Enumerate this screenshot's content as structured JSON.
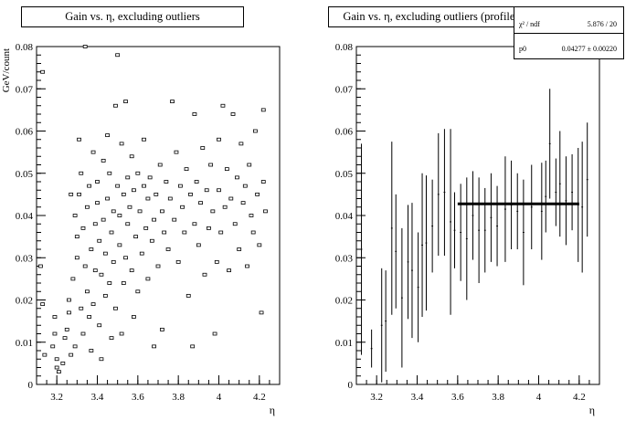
{
  "chart_data": [
    {
      "type": "scatter",
      "title": "Gain vs. η, excluding outliers",
      "xlabel": "η",
      "ylabel": "GeV/count",
      "xlim": [
        3.1,
        4.3
      ],
      "ylim": [
        0,
        0.08
      ],
      "x_ticks": [
        "3.2",
        "3.4",
        "3.6",
        "3.8",
        "4",
        "4.2"
      ],
      "y_ticks": [
        "0",
        "0.01",
        "0.02",
        "0.03",
        "0.04",
        "0.05",
        "0.06",
        "0.07",
        "0.08"
      ],
      "grid": false,
      "legend": "none",
      "marker": "open-box",
      "points": [
        [
          3.13,
          0.074
        ],
        [
          3.12,
          0.028
        ],
        [
          3.13,
          0.019
        ],
        [
          3.14,
          0.007
        ],
        [
          3.18,
          0.009
        ],
        [
          3.19,
          0.012
        ],
        [
          3.19,
          0.016
        ],
        [
          3.2,
          0.004
        ],
        [
          3.2,
          0.006
        ],
        [
          3.21,
          0.003
        ],
        [
          3.23,
          0.005
        ],
        [
          3.24,
          0.011
        ],
        [
          3.25,
          0.013
        ],
        [
          3.26,
          0.017
        ],
        [
          3.26,
          0.02
        ],
        [
          3.27,
          0.007
        ],
        [
          3.27,
          0.045
        ],
        [
          3.28,
          0.025
        ],
        [
          3.29,
          0.009
        ],
        [
          3.29,
          0.04
        ],
        [
          3.3,
          0.03
        ],
        [
          3.3,
          0.035
        ],
        [
          3.31,
          0.045
        ],
        [
          3.31,
          0.058
        ],
        [
          3.32,
          0.05
        ],
        [
          3.32,
          0.018
        ],
        [
          3.33,
          0.012
        ],
        [
          3.33,
          0.037
        ],
        [
          3.34,
          0.028
        ],
        [
          3.34,
          0.08
        ],
        [
          3.35,
          0.022
        ],
        [
          3.35,
          0.042
        ],
        [
          3.36,
          0.016
        ],
        [
          3.36,
          0.047
        ],
        [
          3.37,
          0.032
        ],
        [
          3.37,
          0.008
        ],
        [
          3.38,
          0.055
        ],
        [
          3.38,
          0.019
        ],
        [
          3.39,
          0.038
        ],
        [
          3.39,
          0.027
        ],
        [
          3.4,
          0.048
        ],
        [
          3.4,
          0.043
        ],
        [
          3.41,
          0.014
        ],
        [
          3.41,
          0.034
        ],
        [
          3.42,
          0.026
        ],
        [
          3.42,
          0.006
        ],
        [
          3.43,
          0.039
        ],
        [
          3.43,
          0.053
        ],
        [
          3.44,
          0.021
        ],
        [
          3.44,
          0.031
        ],
        [
          3.45,
          0.059
        ],
        [
          3.45,
          0.044
        ],
        [
          3.46,
          0.024
        ],
        [
          3.46,
          0.05
        ],
        [
          3.47,
          0.036
        ],
        [
          3.47,
          0.011
        ],
        [
          3.48,
          0.041
        ],
        [
          3.48,
          0.029
        ],
        [
          3.49,
          0.066
        ],
        [
          3.49,
          0.018
        ],
        [
          3.5,
          0.078
        ],
        [
          3.5,
          0.047
        ],
        [
          3.51,
          0.04
        ],
        [
          3.51,
          0.033
        ],
        [
          3.52,
          0.057
        ],
        [
          3.52,
          0.012
        ],
        [
          3.53,
          0.045
        ],
        [
          3.53,
          0.024
        ],
        [
          3.54,
          0.067
        ],
        [
          3.54,
          0.03
        ],
        [
          3.55,
          0.049
        ],
        [
          3.55,
          0.038
        ],
        [
          3.56,
          0.042
        ],
        [
          3.57,
          0.027
        ],
        [
          3.57,
          0.054
        ],
        [
          3.58,
          0.016
        ],
        [
          3.58,
          0.046
        ],
        [
          3.59,
          0.035
        ],
        [
          3.6,
          0.05
        ],
        [
          3.6,
          0.022
        ],
        [
          3.61,
          0.041
        ],
        [
          3.62,
          0.031
        ],
        [
          3.63,
          0.047
        ],
        [
          3.63,
          0.058
        ],
        [
          3.64,
          0.037
        ],
        [
          3.65,
          0.044
        ],
        [
          3.65,
          0.025
        ],
        [
          3.66,
          0.049
        ],
        [
          3.67,
          0.034
        ],
        [
          3.68,
          0.039
        ],
        [
          3.68,
          0.009
        ],
        [
          3.69,
          0.045
        ],
        [
          3.7,
          0.028
        ],
        [
          3.71,
          0.052
        ],
        [
          3.72,
          0.041
        ],
        [
          3.72,
          0.013
        ],
        [
          3.73,
          0.036
        ],
        [
          3.74,
          0.048
        ],
        [
          3.75,
          0.032
        ],
        [
          3.76,
          0.044
        ],
        [
          3.77,
          0.067
        ],
        [
          3.78,
          0.039
        ],
        [
          3.79,
          0.055
        ],
        [
          3.8,
          0.029
        ],
        [
          3.81,
          0.047
        ],
        [
          3.82,
          0.042
        ],
        [
          3.83,
          0.036
        ],
        [
          3.84,
          0.051
        ],
        [
          3.85,
          0.021
        ],
        [
          3.86,
          0.045
        ],
        [
          3.87,
          0.009
        ],
        [
          3.88,
          0.064
        ],
        [
          3.88,
          0.038
        ],
        [
          3.89,
          0.048
        ],
        [
          3.9,
          0.033
        ],
        [
          3.91,
          0.043
        ],
        [
          3.92,
          0.056
        ],
        [
          3.93,
          0.026
        ],
        [
          3.94,
          0.046
        ],
        [
          3.95,
          0.037
        ],
        [
          3.96,
          0.052
        ],
        [
          3.97,
          0.041
        ],
        [
          3.98,
          0.012
        ],
        [
          3.99,
          0.029
        ],
        [
          4.0,
          0.046
        ],
        [
          4.0,
          0.058
        ],
        [
          4.01,
          0.036
        ],
        [
          4.02,
          0.066
        ],
        [
          4.03,
          0.042
        ],
        [
          4.04,
          0.051
        ],
        [
          4.05,
          0.027
        ],
        [
          4.06,
          0.044
        ],
        [
          4.07,
          0.064
        ],
        [
          4.08,
          0.038
        ],
        [
          4.09,
          0.049
        ],
        [
          4.1,
          0.032
        ],
        [
          4.11,
          0.057
        ],
        [
          4.12,
          0.043
        ],
        [
          4.13,
          0.047
        ],
        [
          4.14,
          0.028
        ],
        [
          4.15,
          0.052
        ],
        [
          4.16,
          0.04
        ],
        [
          4.17,
          0.036
        ],
        [
          4.18,
          0.06
        ],
        [
          4.19,
          0.045
        ],
        [
          4.2,
          0.033
        ],
        [
          4.21,
          0.017
        ],
        [
          4.22,
          0.065
        ],
        [
          4.22,
          0.048
        ],
        [
          4.23,
          0.041
        ]
      ]
    },
    {
      "type": "scatter",
      "subtype": "profile-with-error-bars",
      "title": "Gain vs. η, excluding outliers (profile)",
      "xlabel": "η",
      "ylabel": "",
      "xlim": [
        3.1,
        4.3
      ],
      "ylim": [
        0,
        0.08
      ],
      "x_ticks": [
        "3.2",
        "3.4",
        "3.6",
        "3.8",
        "4",
        "4.2"
      ],
      "y_ticks": [
        "0",
        "0.01",
        "0.02",
        "0.03",
        "0.04",
        "0.05",
        "0.06",
        "0.07",
        "0.08"
      ],
      "grid": false,
      "legend": "none",
      "profile": [
        {
          "x": 3.125,
          "y": 0.032,
          "err": 0.025
        },
        {
          "x": 3.175,
          "y": 0.0085,
          "err": 0.0045
        },
        {
          "x": 3.225,
          "y": 0.014,
          "err": 0.0135
        },
        {
          "x": 3.245,
          "y": 0.015,
          "err": 0.012
        },
        {
          "x": 3.275,
          "y": 0.037,
          "err": 0.0205
        },
        {
          "x": 3.295,
          "y": 0.0315,
          "err": 0.0135
        },
        {
          "x": 3.325,
          "y": 0.0205,
          "err": 0.0165
        },
        {
          "x": 3.355,
          "y": 0.029,
          "err": 0.0135
        },
        {
          "x": 3.375,
          "y": 0.027,
          "err": 0.016
        },
        {
          "x": 3.405,
          "y": 0.023,
          "err": 0.013
        },
        {
          "x": 3.425,
          "y": 0.033,
          "err": 0.017
        },
        {
          "x": 3.445,
          "y": 0.0335,
          "err": 0.016
        },
        {
          "x": 3.475,
          "y": 0.0375,
          "err": 0.011
        },
        {
          "x": 3.505,
          "y": 0.045,
          "err": 0.0145
        },
        {
          "x": 3.535,
          "y": 0.0455,
          "err": 0.015
        },
        {
          "x": 3.565,
          "y": 0.0385,
          "err": 0.022
        },
        {
          "x": 3.585,
          "y": 0.0365,
          "err": 0.009
        },
        {
          "x": 3.615,
          "y": 0.036,
          "err": 0.0115
        },
        {
          "x": 3.645,
          "y": 0.0345,
          "err": 0.0145
        },
        {
          "x": 3.675,
          "y": 0.04,
          "err": 0.0105
        },
        {
          "x": 3.705,
          "y": 0.0365,
          "err": 0.0125
        },
        {
          "x": 3.735,
          "y": 0.0365,
          "err": 0.01
        },
        {
          "x": 3.765,
          "y": 0.0395,
          "err": 0.0105
        },
        {
          "x": 3.795,
          "y": 0.0375,
          "err": 0.0095
        },
        {
          "x": 3.835,
          "y": 0.0415,
          "err": 0.0125
        },
        {
          "x": 3.865,
          "y": 0.0425,
          "err": 0.0105
        },
        {
          "x": 3.895,
          "y": 0.041,
          "err": 0.009
        },
        {
          "x": 3.925,
          "y": 0.036,
          "err": 0.0125
        },
        {
          "x": 3.965,
          "y": 0.042,
          "err": 0.01
        },
        {
          "x": 4.015,
          "y": 0.041,
          "err": 0.0115
        },
        {
          "x": 4.035,
          "y": 0.0445,
          "err": 0.0085
        },
        {
          "x": 4.055,
          "y": 0.057,
          "err": 0.013
        },
        {
          "x": 4.085,
          "y": 0.0455,
          "err": 0.008
        },
        {
          "x": 4.105,
          "y": 0.0475,
          "err": 0.0125
        },
        {
          "x": 4.135,
          "y": 0.0435,
          "err": 0.0105
        },
        {
          "x": 4.165,
          "y": 0.0455,
          "err": 0.009
        },
        {
          "x": 4.195,
          "y": 0.0425,
          "err": 0.0135
        },
        {
          "x": 4.215,
          "y": 0.042,
          "err": 0.0155
        },
        {
          "x": 4.24,
          "y": 0.0485,
          "err": 0.0135
        }
      ],
      "fit": {
        "x_start": 3.6,
        "x_end": 4.2,
        "p0": 0.04277
      },
      "stats": {
        "chi2_label": "χ² / ndf",
        "chi2_value": "5.876 / 20",
        "p0_label": "p0",
        "p0_value": "0.04277  ± 0.00220"
      }
    }
  ]
}
